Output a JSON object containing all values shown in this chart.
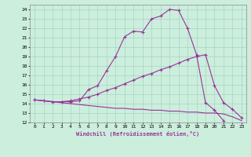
{
  "title": "Windchill (Refroidissement éolien,°C)",
  "background_color": "#cceedd",
  "line_color": "#993399",
  "xlim": [
    -0.5,
    23.5
  ],
  "ylim": [
    12,
    24.5
  ],
  "xticks": [
    0,
    1,
    2,
    3,
    4,
    5,
    6,
    7,
    8,
    9,
    10,
    11,
    12,
    13,
    14,
    15,
    16,
    17,
    18,
    19,
    20,
    21,
    22,
    23
  ],
  "yticks": [
    12,
    13,
    14,
    15,
    16,
    17,
    18,
    19,
    20,
    21,
    22,
    23,
    24
  ],
  "line1_x": [
    0,
    1,
    2,
    3,
    4,
    5,
    6,
    7,
    8,
    9,
    10,
    11,
    12,
    13,
    14,
    15,
    16,
    17,
    18,
    19,
    20,
    21
  ],
  "line1_y": [
    14.4,
    14.3,
    14.2,
    14.2,
    14.2,
    14.3,
    15.5,
    15.9,
    17.5,
    19.0,
    21.1,
    21.7,
    21.6,
    23.0,
    23.3,
    24.0,
    23.9,
    22.0,
    19.2,
    14.1,
    13.3,
    12.2
  ],
  "line2_x": [
    0,
    1,
    2,
    3,
    4,
    5,
    6,
    7,
    8,
    9,
    10,
    11,
    12,
    13,
    14,
    15,
    16,
    17,
    18,
    19,
    20,
    21,
    22,
    23
  ],
  "line2_y": [
    14.4,
    14.3,
    14.2,
    14.2,
    14.3,
    14.5,
    14.7,
    15.0,
    15.4,
    15.7,
    16.1,
    16.5,
    16.9,
    17.2,
    17.6,
    17.9,
    18.3,
    18.7,
    19.0,
    19.2,
    15.9,
    14.1,
    13.4,
    12.5
  ],
  "line3_x": [
    0,
    1,
    2,
    3,
    4,
    5,
    6,
    7,
    8,
    9,
    10,
    11,
    12,
    13,
    14,
    15,
    16,
    17,
    18,
    19,
    20,
    21,
    22,
    23
  ],
  "line3_y": [
    14.4,
    14.3,
    14.2,
    14.1,
    14.0,
    13.9,
    13.8,
    13.7,
    13.6,
    13.5,
    13.5,
    13.4,
    13.4,
    13.3,
    13.3,
    13.2,
    13.2,
    13.1,
    13.1,
    13.0,
    13.0,
    12.9,
    12.6,
    12.2
  ],
  "grid_color": "#99ccbb",
  "xlabel_color": "#993399",
  "font_family": "monospace"
}
